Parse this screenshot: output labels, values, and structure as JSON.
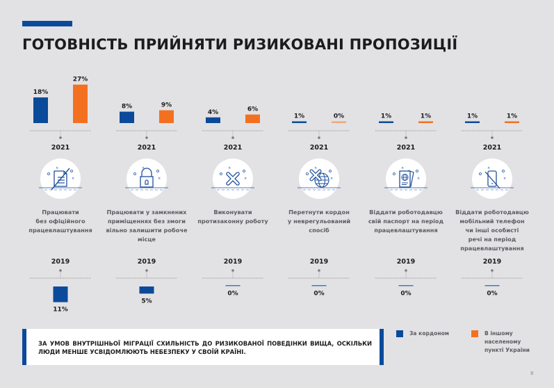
{
  "header": {
    "title": "ГОТОВНІСТЬ ПРИЙНЯТИ РИЗИКОВАНІ ПРОПОЗИЦІЇ"
  },
  "chart_data": {
    "type": "bar",
    "title": "ГОТОВНІСТЬ ПРИЙНЯТИ РИЗИКОВАНІ ПРОПОЗИЦІЇ",
    "unit": "%",
    "categories": [
      "Працювати без офіційного працевлаштування",
      "Працювати у замкнених приміщеннях без змоги вільно залишити робоче місце",
      "Виконувати протизаконну роботу",
      "Перетнути кордон у неврегульований спосіб",
      "Віддати роботодавцю свій паспорт на період працевлаштування",
      "Віддати роботодавцю мобільний телефон чи інші особисті речі на період працевлаштування"
    ],
    "category_lines": [
      [
        "Працювати",
        "без офіційного",
        "працевлаштування"
      ],
      [
        "Працювати у замкнених",
        "приміщеннях  без змоги",
        "вільно залишити робоче місце"
      ],
      [
        "Виконувати",
        "протизаконну роботу"
      ],
      [
        "Перетнути кордон",
        "у неврегульований",
        "спосіб"
      ],
      [
        "Віддати роботодавцю",
        "свій паспорт на період",
        "працевлаштування"
      ],
      [
        "Віддати роботодавцю",
        "мобільний телефон",
        "чи інші особисті",
        "речі на період",
        "працевлаштування"
      ]
    ],
    "icons": [
      "document-crossed-icon",
      "padlock-icon",
      "x-mark-icon",
      "globe-crossed-icon",
      "passport-icon",
      "phone-crossed-icon"
    ],
    "year_top": "2021",
    "year_bottom": "2019",
    "series_2021": [
      {
        "name": "За кордоном",
        "color": "#0b4a9a",
        "values": [
          18,
          8,
          4,
          1,
          1,
          1
        ],
        "labels": [
          "18%",
          "8%",
          "4%",
          "1%",
          "1%",
          "1%"
        ]
      },
      {
        "name": "В іншому населеному пункті України",
        "color": "#f47021",
        "values": [
          27,
          9,
          6,
          0,
          1,
          1
        ],
        "labels": [
          "27%",
          "9%",
          "6%",
          "0%",
          "1%",
          "1%"
        ]
      }
    ],
    "series_2019": [
      {
        "name": "За кордоном",
        "color": "#0b4a9a",
        "values": [
          11,
          5,
          0,
          0,
          0,
          0
        ],
        "labels": [
          "11%",
          "5%",
          "0%",
          "0%",
          "0%",
          "0%"
        ]
      }
    ],
    "legend": [
      {
        "label": "За кордоном",
        "color": "#0b4a9a",
        "lines": [
          "За кордоном"
        ]
      },
      {
        "label": "В іншому населеному пункті України",
        "color": "#f47021",
        "lines": [
          "В іншому",
          "населеному",
          "пункті України"
        ]
      }
    ],
    "legend_position": "bottom-right"
  },
  "note": {
    "text": "ЗА УМОВ ВНУТРІШНЬОЇ МІГРАЦІЇ СХИЛЬНІСТЬ ДО РИЗИКОВАНОЇ ПОВЕДІНКИ ВИЩА, ОСКІЛЬКИ ЛЮДИ МЕНШЕ УСВІДОМЛЮЮТЬ НЕБЕЗПЕКУ У СВОЇЙ КРАЇНІ."
  },
  "footer": {
    "page_number": "8"
  },
  "colors": {
    "blue": "#0b4a9a",
    "orange": "#f47021",
    "background": "#e2e2e4"
  }
}
